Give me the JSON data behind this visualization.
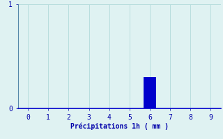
{
  "xlabel": "Précipitations 1h ( mm )",
  "ylabel": "",
  "xlim": [
    -0.5,
    9.5
  ],
  "ylim": [
    0,
    1
  ],
  "yticks": [
    0,
    1
  ],
  "xticks": [
    0,
    1,
    2,
    3,
    4,
    5,
    6,
    7,
    8,
    9
  ],
  "bar_x": [
    6
  ],
  "bar_height": [
    0.3
  ],
  "bar_color": "#0000cc",
  "bar_width": 0.6,
  "background_color": "#dff2f2",
  "grid_color": "#b8dede",
  "axis_color": "#5588aa",
  "bottom_axis_color": "#0000cc",
  "tick_color": "#0000aa",
  "label_color": "#0000aa",
  "font_size": 7,
  "label_font_size": 7
}
